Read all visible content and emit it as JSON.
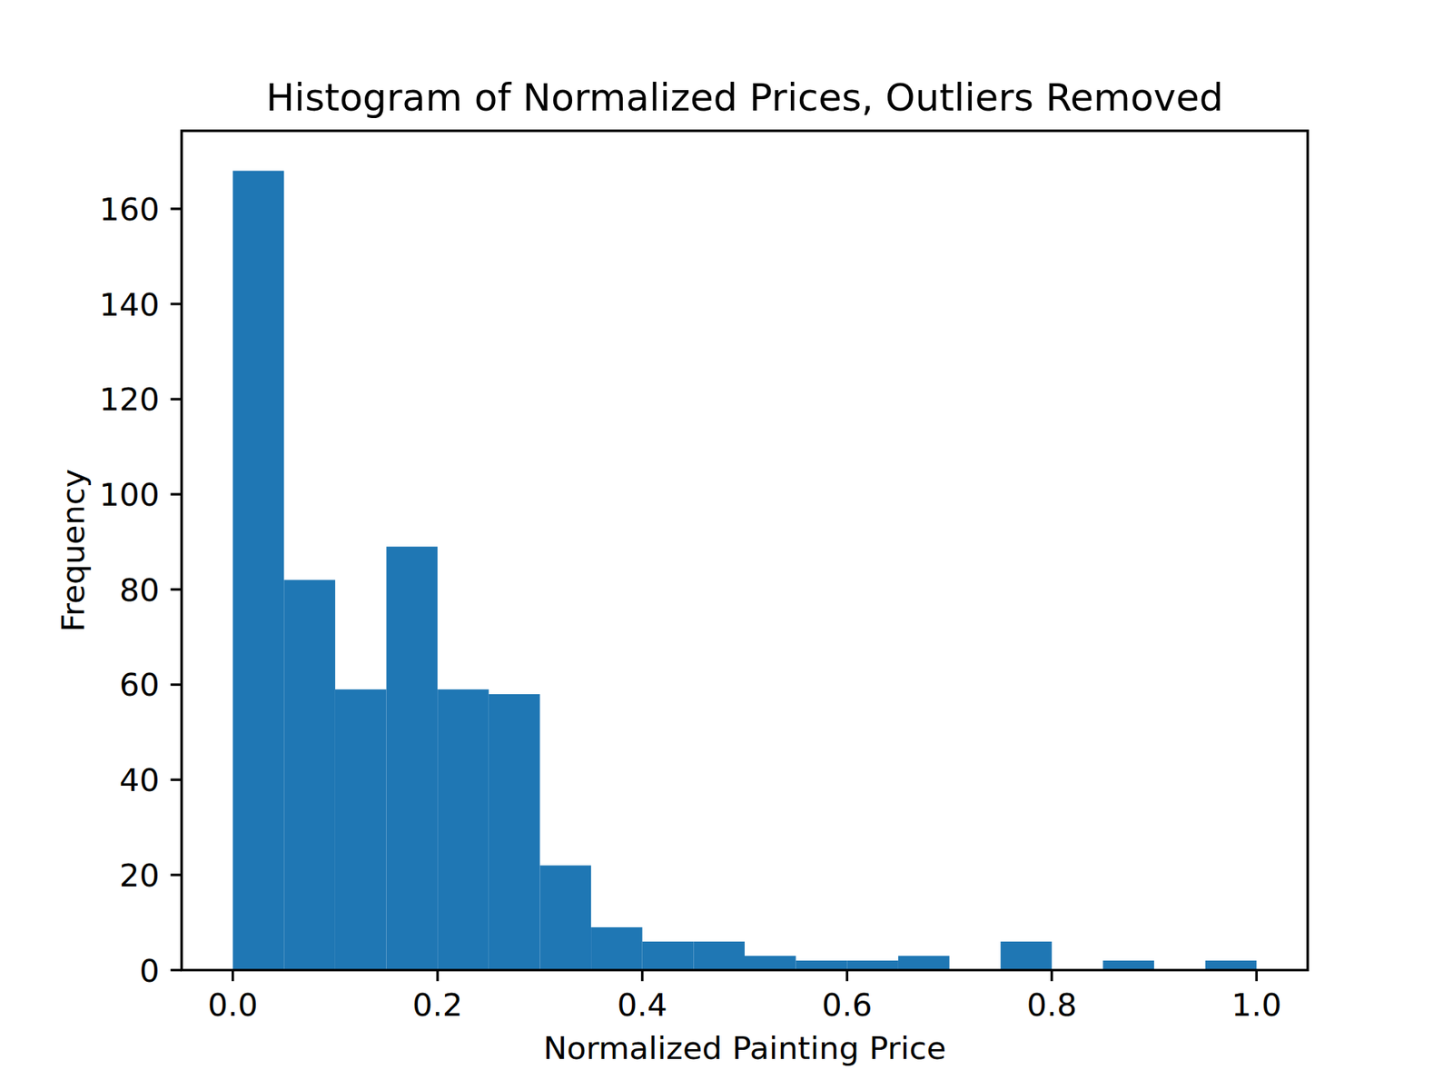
{
  "chart_data": {
    "type": "histogram",
    "title": "Histogram of Normalized Prices, Outliers Removed",
    "x_label": "Normalized Painting Price",
    "y_label": "Frequency",
    "bins": [
      0,
      0.05,
      0.1,
      0.15,
      0.2,
      0.25,
      0.3,
      0.35,
      0.4,
      0.45,
      0.5,
      0.55,
      0.6,
      0.65,
      0.7,
      0.75,
      0.8,
      0.85,
      0.9,
      0.95,
      1.0
    ],
    "values": [
      168,
      82,
      59,
      89,
      59,
      58,
      22,
      9,
      6,
      6,
      3,
      2,
      2,
      3,
      0,
      6,
      0,
      2,
      0,
      2
    ],
    "color": "#1f77b4",
    "xlim": [
      -0.05,
      1.05
    ],
    "ylim": [
      0,
      176.4
    ],
    "xticks": [
      {
        "value": 0,
        "label": "0.0"
      },
      0.2,
      0.4,
      0.6,
      0.8,
      {
        "value": 1,
        "label": "1.0"
      }
    ],
    "yticks": [
      0,
      20,
      40,
      60,
      80,
      100,
      120,
      140,
      160
    ],
    "grid": false
  }
}
